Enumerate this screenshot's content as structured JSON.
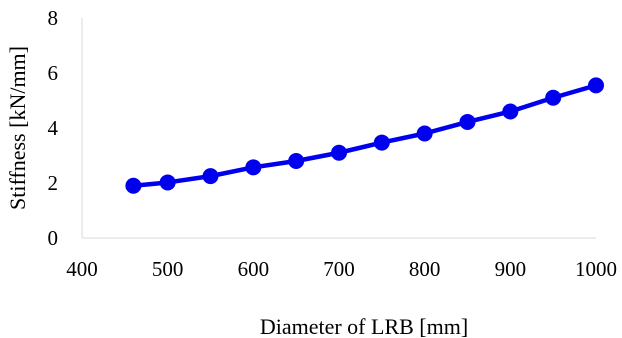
{
  "chart_data": {
    "type": "line",
    "title": "",
    "xlabel": "Diameter of LRB [mm]",
    "ylabel": "Stiffness [kN/mm]",
    "xlim": [
      400,
      1000
    ],
    "ylim": [
      0,
      8
    ],
    "xticks": [
      400,
      500,
      600,
      700,
      800,
      900,
      1000
    ],
    "yticks": [
      0,
      2,
      4,
      6,
      8
    ],
    "grid": false,
    "legend": "none",
    "series": [
      {
        "color": "#0000ee",
        "x": [
          460,
          500,
          550,
          600,
          650,
          700,
          750,
          800,
          850,
          900,
          950,
          1000
        ],
        "y": [
          1.9,
          2.02,
          2.25,
          2.57,
          2.8,
          3.1,
          3.47,
          3.8,
          4.22,
          4.6,
          5.1,
          5.55
        ]
      }
    ]
  }
}
